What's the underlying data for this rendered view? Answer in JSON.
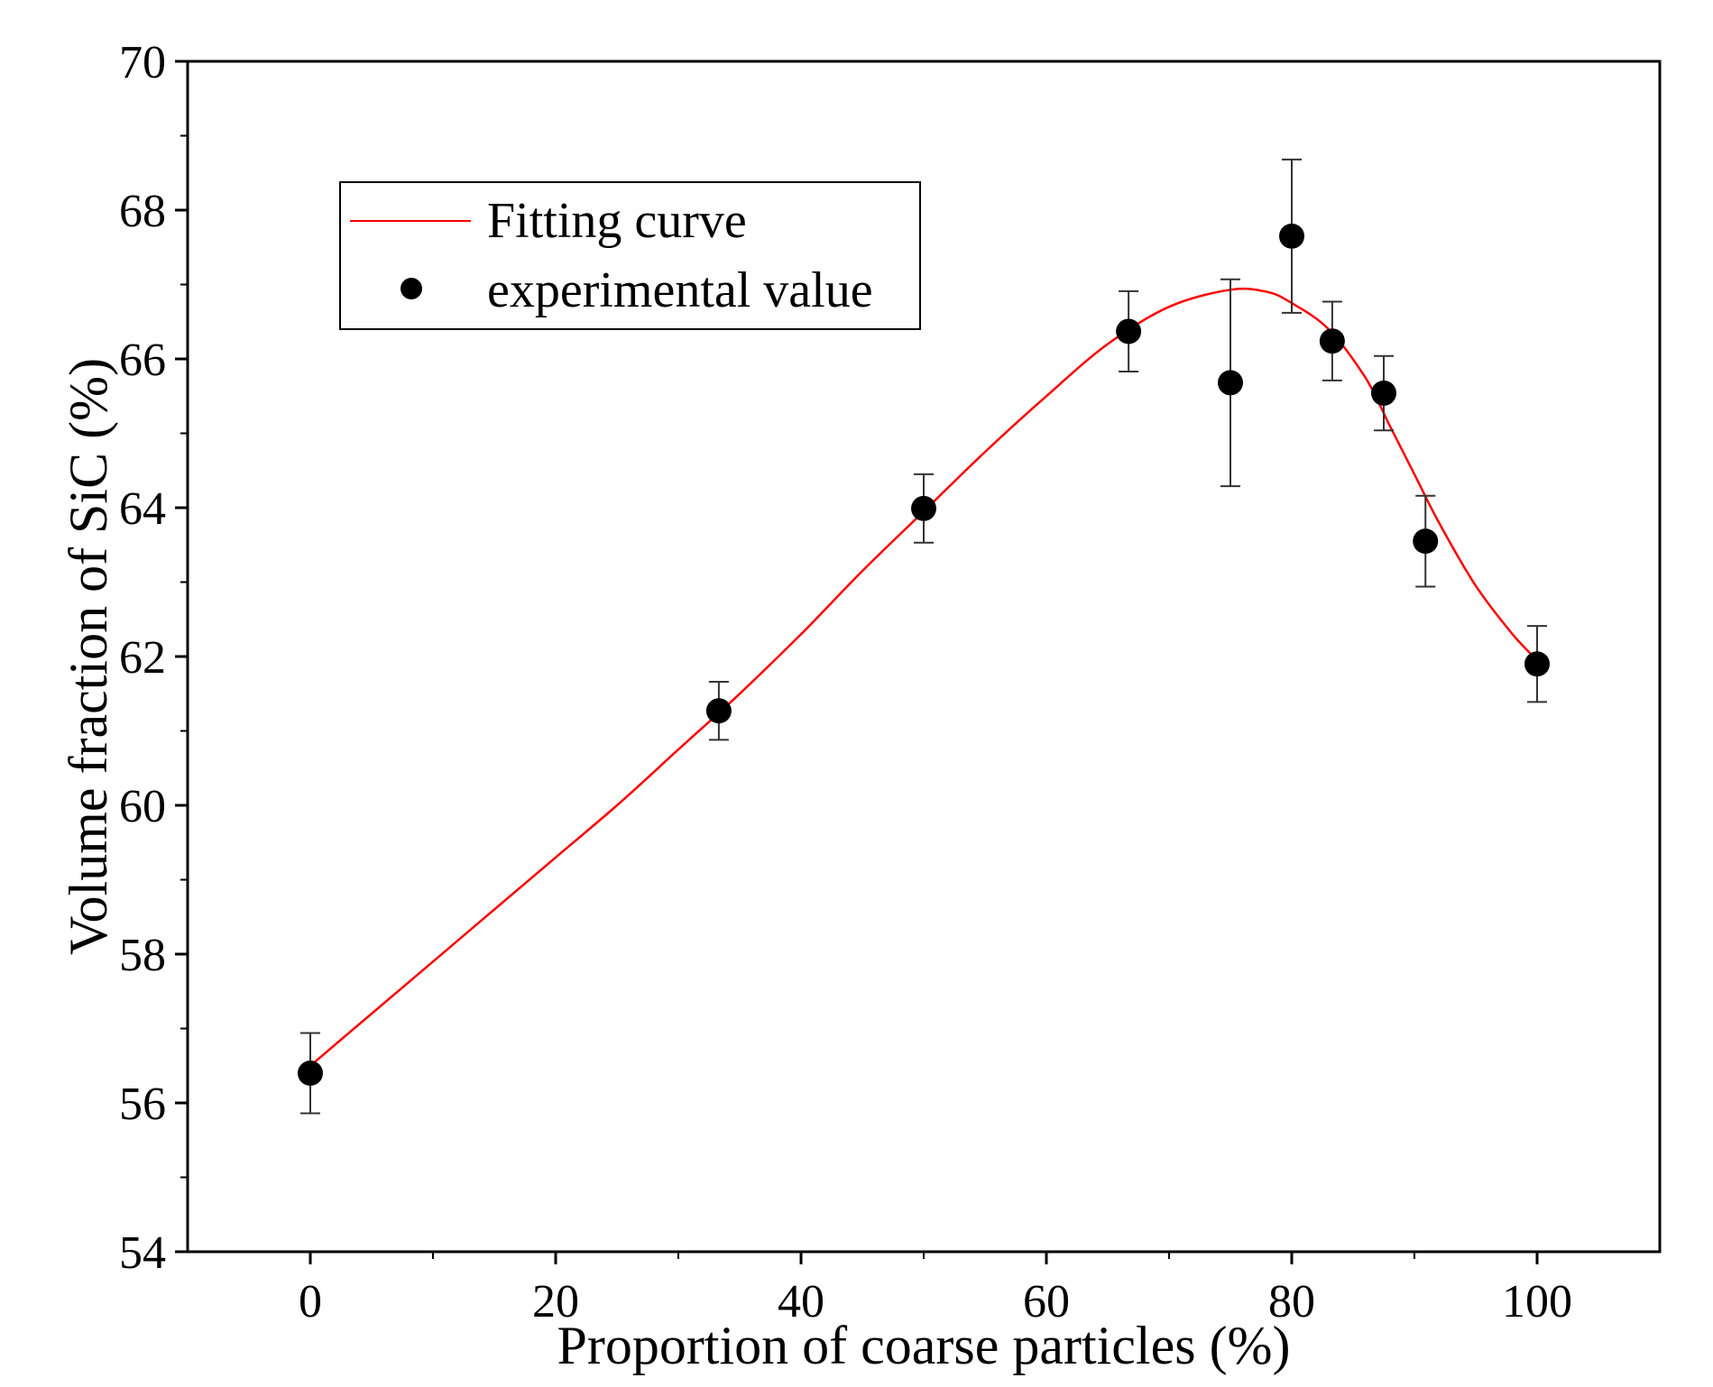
{
  "chart_data": {
    "type": "scatter",
    "title": "",
    "xlabel": "Proportion of coarse particles (%)",
    "ylabel": "Volume fraction of SiC (%)",
    "xlim": [
      -10,
      110
    ],
    "ylim": [
      54,
      70
    ],
    "x_ticks": [
      0,
      20,
      40,
      60,
      80,
      100
    ],
    "y_ticks": [
      54,
      56,
      58,
      60,
      62,
      64,
      66,
      68,
      70
    ],
    "x_minor_ticks": [
      10,
      30,
      50,
      70,
      90
    ],
    "y_minor_ticks": [
      55,
      57,
      59,
      61,
      63,
      65,
      67,
      69
    ],
    "grid": false,
    "legend_position": "top-left",
    "series": [
      {
        "name": "Fitting curve",
        "type": "line",
        "color": "#ff0000",
        "x": [
          0,
          5,
          10,
          15,
          20,
          25,
          30,
          35,
          40,
          45,
          50,
          55,
          60,
          65,
          70,
          75,
          78,
          80,
          83,
          86,
          88,
          90,
          92,
          95,
          98,
          100
        ],
        "y": [
          56.5,
          57.2,
          57.9,
          58.6,
          59.3,
          60.0,
          60.75,
          61.5,
          62.3,
          63.15,
          63.95,
          64.75,
          65.5,
          66.2,
          66.7,
          66.93,
          66.9,
          66.75,
          66.4,
          65.75,
          65.1,
          64.45,
          63.8,
          62.95,
          62.3,
          61.95
        ]
      },
      {
        "name": "experimental value",
        "type": "scatter",
        "color": "#000000",
        "x": [
          0,
          33.3,
          50,
          66.7,
          75,
          80,
          83.3,
          87.5,
          90.9,
          100
        ],
        "y": [
          56.4,
          61.27,
          63.99,
          66.37,
          65.68,
          67.65,
          66.24,
          65.54,
          63.55,
          61.9
        ],
        "error": [
          0.54,
          0.39,
          0.46,
          0.54,
          1.39,
          1.03,
          0.53,
          0.5,
          0.61,
          0.51
        ]
      }
    ]
  }
}
